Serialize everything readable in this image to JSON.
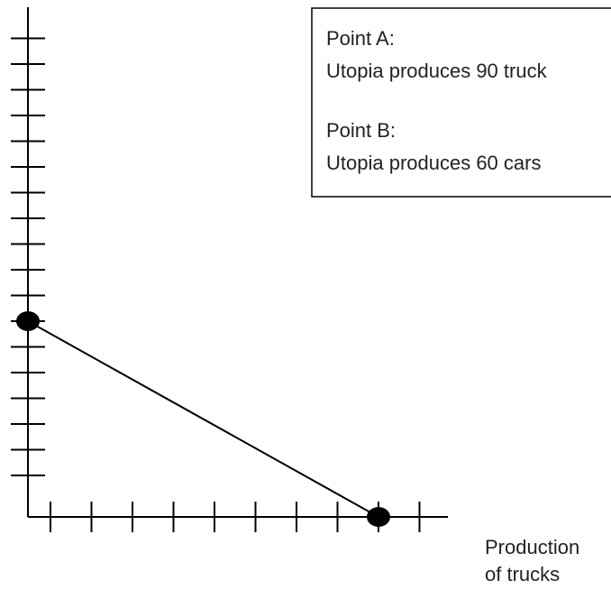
{
  "chart_data": {
    "type": "line",
    "title": "",
    "xlabel": "Production of trucks",
    "xlabel_lines": [
      "Production",
      "of trucks"
    ],
    "ylabel": "",
    "x_ticks_count": 10,
    "y_ticks_count": 18,
    "series": [
      {
        "x": [
          0,
          9
        ],
        "y": [
          7,
          0
        ]
      }
    ],
    "points": [
      {
        "x": 0,
        "y": 7
      },
      {
        "x": 9,
        "y": 0
      }
    ],
    "annotation": {
      "lines": [
        "Point A:",
        "Utopia produces 90 truck",
        "",
        "Point B:",
        "Utopia produces 60 cars"
      ]
    },
    "grid": false,
    "legend": "none",
    "colors": {
      "axis": "#000000",
      "line": "#000000",
      "text": "#222222"
    }
  }
}
